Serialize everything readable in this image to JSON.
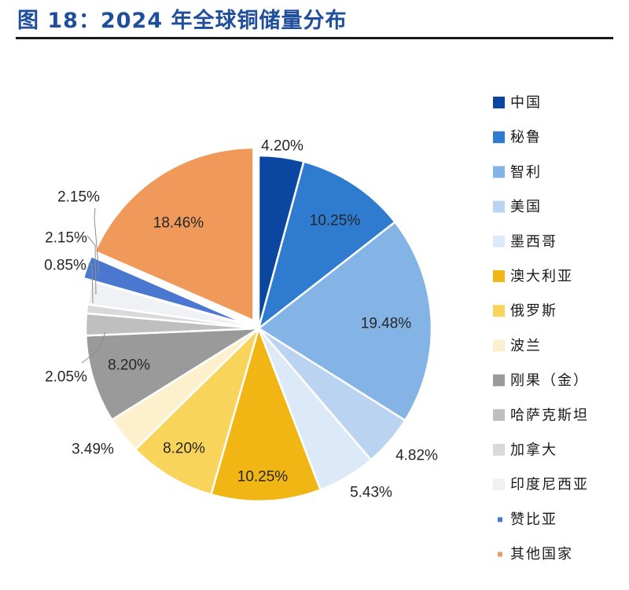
{
  "figure": {
    "title": "图 18：2024 年全球铜储量分布"
  },
  "chart_data": {
    "type": "pie",
    "title": "2024 年全球铜储量分布",
    "unit": "%",
    "slices": [
      {
        "name": "中国",
        "value": 4.2,
        "label": "4.20%",
        "color": "#0b47a1",
        "legend": "square",
        "label_inside": false
      },
      {
        "name": "秘鲁",
        "value": 10.25,
        "label": "10.25%",
        "color": "#2e7bd0",
        "legend": "square",
        "label_inside": true
      },
      {
        "name": "智利",
        "value": 19.48,
        "label": "19.48%",
        "color": "#84b4e6",
        "legend": "square",
        "label_inside": true
      },
      {
        "name": "美国",
        "value": 4.82,
        "label": "4.82%",
        "color": "#b9d3f1",
        "legend": "square",
        "label_inside": false
      },
      {
        "name": "墨西哥",
        "value": 5.43,
        "label": "5.43%",
        "color": "#dce9f8",
        "legend": "square",
        "label_inside": false
      },
      {
        "name": "澳大利亚",
        "value": 10.25,
        "label": "10.25%",
        "color": "#f1b514",
        "legend": "square",
        "label_inside": true
      },
      {
        "name": "俄罗斯",
        "value": 8.2,
        "label": "8.20%",
        "color": "#f9d45b",
        "legend": "square",
        "label_inside": true
      },
      {
        "name": "波兰",
        "value": 3.49,
        "label": "3.49%",
        "color": "#fdf0cd",
        "legend": "square",
        "label_inside": false
      },
      {
        "name": "刚果（金）",
        "value": 8.2,
        "label": "8.20%",
        "color": "#9a9a9a",
        "legend": "square",
        "label_inside": true
      },
      {
        "name": "哈萨克斯坦",
        "value": 2.05,
        "label": "2.05%",
        "color": "#bfbfbf",
        "legend": "square",
        "label_inside": false
      },
      {
        "name": "加拿大",
        "value": 0.85,
        "label": "0.85%",
        "color": "#d9d9d9",
        "legend": "square",
        "label_inside": false
      },
      {
        "name": "印度尼西亚",
        "value": 2.15,
        "label": "2.15%",
        "color": "#eff1f5",
        "legend": "square",
        "label_inside": false
      },
      {
        "name": "赞比亚",
        "value": 2.15,
        "label": "2.15%",
        "color": "#4a78d0",
        "legend": "dot",
        "label_inside": false
      },
      {
        "name": "其他国家",
        "value": 18.46,
        "label": "18.46%",
        "color": "#ef9a5a",
        "legend": "dot",
        "label_inside": true
      }
    ],
    "exploded": [
      "赞比亚",
      "其他国家"
    ],
    "legend_position": "right"
  }
}
